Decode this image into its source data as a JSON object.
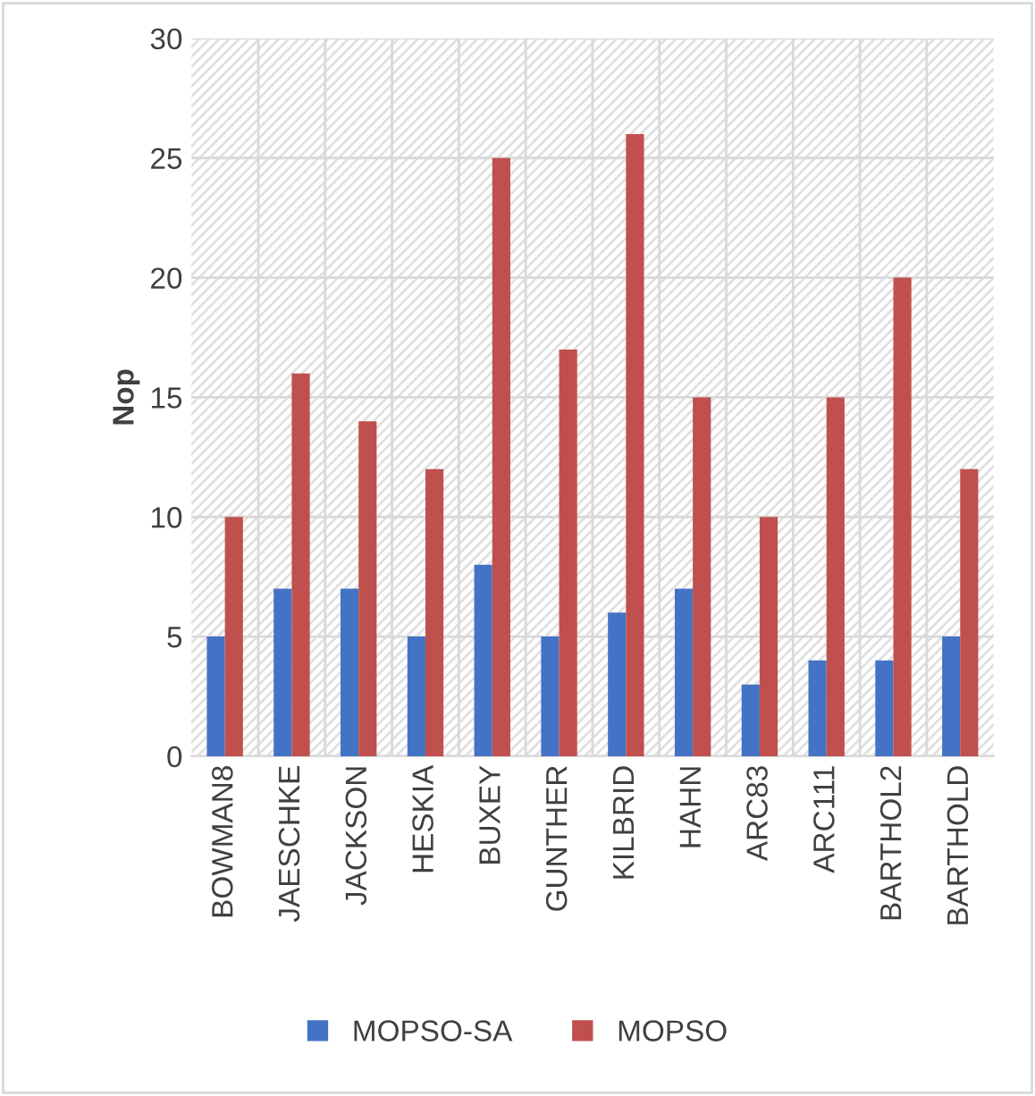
{
  "chart_data": {
    "type": "bar",
    "ylabel": "Nop",
    "categories": [
      "BOWMAN8",
      "JAESCHKE",
      "JACKSON",
      "HESKIA",
      "BUXEY",
      "GUNTHER",
      "KILBRID",
      "HAHN",
      "ARC83",
      "ARC111",
      "BARTHOL2",
      "BARTHOLD"
    ],
    "series": [
      {
        "name": "MOPSO-SA",
        "color": "#4472c4",
        "values": [
          5,
          7,
          7,
          5,
          8,
          5,
          6,
          7,
          3,
          4,
          4,
          5
        ]
      },
      {
        "name": "MOPSO",
        "color": "#c0504d",
        "values": [
          10,
          16,
          14,
          12,
          25,
          17,
          26,
          15,
          10,
          15,
          20,
          12
        ]
      }
    ],
    "ylim": [
      0,
      30
    ],
    "yticks": [
      0,
      5,
      10,
      15,
      20,
      25,
      30
    ],
    "grid": true,
    "legend": "bottom"
  }
}
